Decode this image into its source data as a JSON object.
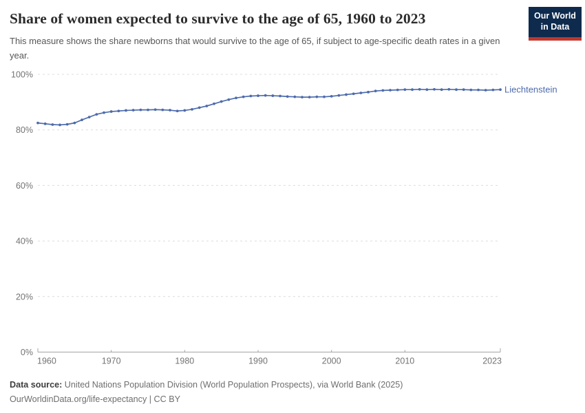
{
  "header": {
    "title": "Share of women expected to survive to the age of 65, 1960 to 2023",
    "subtitle": "This measure shows the share newborns that would survive to the age of 65, if subject to age-specific death rates in a given year.",
    "logo": {
      "line1": "Our World",
      "line2": "in Data"
    }
  },
  "chart_data": {
    "type": "line",
    "title": "Share of women expected to survive to the age of 65, 1960 to 2023",
    "xlabel": "",
    "ylabel": "",
    "xlim": [
      1960,
      2023
    ],
    "ylim": [
      0,
      100
    ],
    "x_ticks": [
      1960,
      1970,
      1980,
      1990,
      2000,
      2010,
      2023
    ],
    "y_ticks": [
      0,
      20,
      40,
      60,
      80,
      100
    ],
    "y_tick_suffix": "%",
    "grid": "horizontal-dashed",
    "legend_position": "end-of-line-label",
    "x": [
      1960,
      1961,
      1962,
      1963,
      1964,
      1965,
      1966,
      1967,
      1968,
      1969,
      1970,
      1971,
      1972,
      1973,
      1974,
      1975,
      1976,
      1977,
      1978,
      1979,
      1980,
      1981,
      1982,
      1983,
      1984,
      1985,
      1986,
      1987,
      1988,
      1989,
      1990,
      1991,
      1992,
      1993,
      1994,
      1995,
      1996,
      1997,
      1998,
      1999,
      2000,
      2001,
      2002,
      2003,
      2004,
      2005,
      2006,
      2007,
      2008,
      2009,
      2010,
      2011,
      2012,
      2013,
      2014,
      2015,
      2016,
      2017,
      2018,
      2019,
      2020,
      2021,
      2022,
      2023
    ],
    "series": [
      {
        "name": "Liechtenstein",
        "color": "#4d6bac",
        "values": [
          82.5,
          82.2,
          81.9,
          81.8,
          82.0,
          82.5,
          83.6,
          84.6,
          85.6,
          86.2,
          86.6,
          86.8,
          87.0,
          87.1,
          87.2,
          87.2,
          87.3,
          87.2,
          87.1,
          86.8,
          87.0,
          87.4,
          88.0,
          88.6,
          89.4,
          90.2,
          90.9,
          91.5,
          91.9,
          92.2,
          92.3,
          92.4,
          92.3,
          92.2,
          92.0,
          91.9,
          91.8,
          91.8,
          91.9,
          91.9,
          92.1,
          92.4,
          92.7,
          93.0,
          93.3,
          93.6,
          94.0,
          94.2,
          94.3,
          94.4,
          94.5,
          94.5,
          94.6,
          94.5,
          94.6,
          94.5,
          94.6,
          94.5,
          94.5,
          94.4,
          94.4,
          94.3,
          94.4,
          94.5
        ]
      }
    ]
  },
  "footer": {
    "datasource_label": "Data source:",
    "datasource_text": " United Nations Population Division (World Population Prospects), via World Bank (2025)",
    "link_line": "OurWorldinData.org/life-expectancy | CC BY"
  },
  "colors": {
    "line": "#4d6bac",
    "logo_bg": "#0e2a4d",
    "logo_accent": "#c0372e",
    "axis": "#a3a3a3",
    "grid": "#dcdcdc",
    "tick_label": "#737373"
  }
}
